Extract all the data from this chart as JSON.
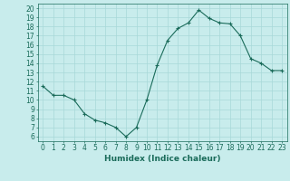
{
  "x": [
    0,
    1,
    2,
    3,
    4,
    5,
    6,
    7,
    8,
    9,
    10,
    11,
    12,
    13,
    14,
    15,
    16,
    17,
    18,
    19,
    20,
    21,
    22,
    23
  ],
  "y": [
    11.5,
    10.5,
    10.5,
    10.0,
    8.5,
    7.8,
    7.5,
    7.0,
    6.0,
    7.0,
    10.0,
    13.8,
    16.5,
    17.8,
    18.4,
    19.8,
    18.9,
    18.4,
    18.3,
    17.0,
    14.5,
    14.0,
    13.2,
    13.2
  ],
  "line_color": "#1a6b5a",
  "marker": "+",
  "marker_size": 3,
  "bg_color": "#c8ecec",
  "grid_color": "#a8d8d8",
  "xlabel": "Humidex (Indice chaleur)",
  "xlim": [
    -0.5,
    23.5
  ],
  "ylim": [
    5.5,
    20.5
  ],
  "yticks": [
    6,
    7,
    8,
    9,
    10,
    11,
    12,
    13,
    14,
    15,
    16,
    17,
    18,
    19,
    20
  ],
  "xticks": [
    0,
    1,
    2,
    3,
    4,
    5,
    6,
    7,
    8,
    9,
    10,
    11,
    12,
    13,
    14,
    15,
    16,
    17,
    18,
    19,
    20,
    21,
    22,
    23
  ],
  "tick_color": "#1a6b5a",
  "label_fontsize": 5.5,
  "axis_fontsize": 6.5
}
